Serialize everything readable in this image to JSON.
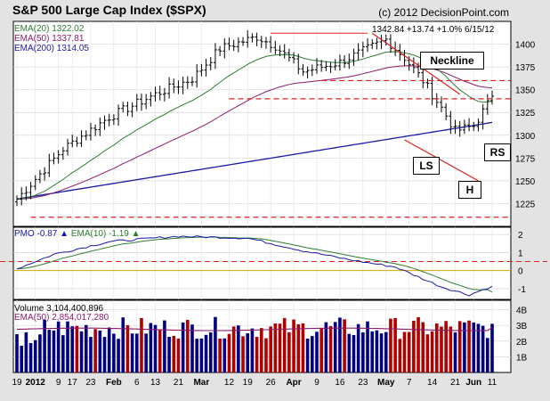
{
  "header": {
    "title": "S&P 500 Large Cap Index ($SPX)",
    "credit": "(c) 2012 DecisionPoint.com",
    "last_bar": "1342.84  +13.74  +1.0%  6/15/12"
  },
  "price_legend": [
    {
      "label": "EMA(20) 1322.02",
      "color": "#2e7d32"
    },
    {
      "label": "EMA(50) 1337.81",
      "color": "#8b1a6b"
    },
    {
      "label": "EMA(200) 1314.05",
      "color": "#1a1aa8"
    }
  ],
  "pmo_legend": {
    "pmo": "PMO  -0.87",
    "pmo_arrow": "▲",
    "ema": "EMA(10)  -1.19",
    "ema_arrow": "▲",
    "pmo_color": "#1a1aa8",
    "ema_color": "#2e7d32"
  },
  "volume_legend": {
    "volume": "Volume  3,104,400,896",
    "ema": "EMA(50)  2,854,017,280",
    "ema_color": "#8b1a6b"
  },
  "annotations": {
    "neckline": "Neckline",
    "ls": "LS",
    "h": "H",
    "rs": "RS"
  },
  "chart_data": [
    {
      "type": "ohlc",
      "name": "price",
      "x_labels": [
        "19",
        "2012",
        "9",
        "17",
        "23",
        "Feb",
        "6",
        "13",
        "21",
        "Mar",
        "12",
        "19",
        "26",
        "Apr",
        "9",
        "16",
        "23",
        "May",
        "7",
        "14",
        "21",
        "Jun",
        "11"
      ],
      "y_ticks": [
        1225,
        1250,
        1275,
        1300,
        1325,
        1350,
        1375,
        1400
      ],
      "ylim": [
        1200,
        1425
      ],
      "series": [
        {
          "name": "EMA(20)",
          "last": 1322.02
        },
        {
          "name": "EMA(50)",
          "last": 1337.81
        },
        {
          "name": "EMA(200)",
          "last": 1314.05
        }
      ],
      "levels": [
        {
          "label": "Neckline",
          "value": 1340
        },
        {
          "value": 1360
        },
        {
          "value": 1210
        }
      ]
    },
    {
      "type": "line",
      "name": "PMO",
      "y_ticks": [
        -1,
        0,
        1,
        2
      ],
      "ylim": [
        -1.6,
        2.4
      ],
      "series": [
        {
          "name": "PMO",
          "last": -0.87
        },
        {
          "name": "EMA(10)",
          "last": -1.19
        }
      ]
    },
    {
      "type": "bar",
      "name": "Volume",
      "y_ticks": [
        "1B",
        "2B",
        "3B",
        "4B"
      ],
      "ylim": [
        0,
        4.6
      ],
      "series": [
        {
          "name": "Volume",
          "last": 3104400896
        },
        {
          "name": "EMA(50)",
          "last": 2854017280
        }
      ]
    }
  ]
}
